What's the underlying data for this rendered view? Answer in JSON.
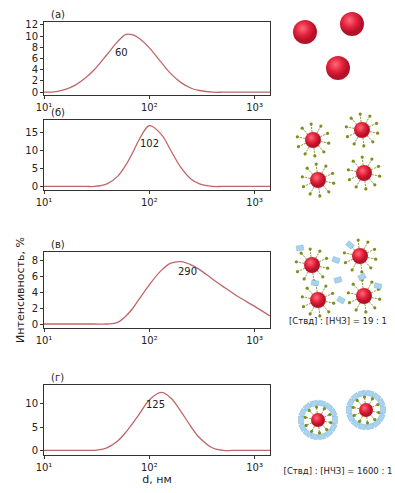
{
  "chart_data": [
    {
      "type": "line",
      "label": "(а)",
      "log": "x",
      "color": "#c0666a",
      "x": [
        10,
        13,
        16,
        20,
        25,
        30,
        40,
        50,
        60,
        70,
        80,
        100,
        130,
        160,
        200,
        250,
        300,
        400,
        500,
        700,
        1000,
        1400
      ],
      "values": [
        0,
        0.1,
        0.5,
        1.3,
        2.6,
        4.0,
        6.8,
        9.0,
        10.3,
        10.2,
        9.6,
        7.9,
        5.3,
        3.3,
        1.7,
        0.7,
        0.3,
        0,
        0,
        0,
        0,
        0
      ],
      "xlim": [
        10,
        1400
      ],
      "xticks": [
        {
          "value": 10,
          "label": "10¹"
        },
        {
          "value": 100,
          "label": "10²"
        },
        {
          "value": 1000,
          "label": "10³"
        }
      ],
      "ylim": [
        -0.5,
        12.5
      ],
      "yticks": [
        0,
        2,
        4,
        6,
        8,
        10,
        12
      ],
      "annotations": [
        {
          "x": 55,
          "y": 7,
          "text": "60"
        }
      ]
    },
    {
      "type": "line",
      "label": "(б)",
      "log": "x",
      "color": "#c0666a",
      "x": [
        10,
        13,
        16,
        20,
        25,
        30,
        40,
        50,
        60,
        70,
        80,
        100,
        130,
        160,
        200,
        250,
        300,
        400,
        500,
        700,
        1000,
        1400
      ],
      "values": [
        0,
        0,
        0,
        0,
        0,
        0,
        0.8,
        2.8,
        6.0,
        9.6,
        13.0,
        16.9,
        14.5,
        10.0,
        5.2,
        2.0,
        0.7,
        0,
        0,
        0,
        0,
        0
      ],
      "xlim": [
        10,
        1400
      ],
      "xticks": [
        {
          "value": 10,
          "label": "10¹"
        },
        {
          "value": 100,
          "label": "10²"
        },
        {
          "value": 1000,
          "label": "10³"
        }
      ],
      "ylim": [
        -1,
        18.5
      ],
      "yticks": [
        0,
        5,
        10,
        15
      ],
      "annotations": [
        {
          "x": 100,
          "y": 12,
          "text": "102"
        }
      ]
    },
    {
      "type": "line",
      "label": "(в)",
      "log": "x",
      "color": "#c0666a",
      "x": [
        10,
        13,
        16,
        20,
        25,
        30,
        40,
        50,
        60,
        70,
        80,
        100,
        130,
        160,
        200,
        250,
        300,
        400,
        500,
        700,
        1000,
        1400
      ],
      "values": [
        0,
        0,
        0,
        0,
        0,
        0,
        0,
        0.2,
        1.0,
        2.0,
        3.1,
        4.9,
        6.7,
        7.6,
        7.8,
        7.4,
        6.8,
        5.6,
        4.7,
        3.4,
        2.2,
        1.0
      ],
      "xlim": [
        10,
        1400
      ],
      "xticks": [
        {
          "value": 10,
          "label": "10¹"
        },
        {
          "value": 100,
          "label": "10²"
        },
        {
          "value": 1000,
          "label": "10³"
        }
      ],
      "ylim": [
        -0.5,
        9
      ],
      "yticks": [
        0,
        2,
        4,
        6,
        8
      ],
      "ylabel": "Интенсивность, %",
      "note": "[Ствд] : [НЧЗ] = 19 : 1",
      "annotations": [
        {
          "x": 230,
          "y": 6.6,
          "text": "290"
        }
      ]
    },
    {
      "type": "line",
      "label": "(г)",
      "log": "x",
      "color": "#c0666a",
      "x": [
        10,
        13,
        16,
        20,
        25,
        30,
        40,
        50,
        60,
        70,
        80,
        100,
        130,
        160,
        200,
        250,
        300,
        400,
        500,
        700,
        1000,
        1400
      ],
      "values": [
        0,
        0,
        0,
        0,
        0,
        0,
        0.6,
        2.0,
        3.9,
        5.9,
        7.7,
        10.8,
        12.4,
        11.2,
        8.3,
        5.0,
        2.7,
        0.5,
        0,
        0,
        0,
        0
      ],
      "xlim": [
        10,
        1400
      ],
      "xticks": [
        {
          "value": 10,
          "label": "10¹"
        },
        {
          "value": 100,
          "label": "10²"
        },
        {
          "value": 1000,
          "label": "10³"
        }
      ],
      "ylim": [
        -1,
        14
      ],
      "yticks": [
        0,
        5,
        10
      ],
      "xlabel": "d, нм",
      "note": "[Ствд] : [НЧЗ] = 1600 : 1",
      "annotations": [
        {
          "x": 115,
          "y": 9.8,
          "text": "125"
        }
      ]
    }
  ]
}
